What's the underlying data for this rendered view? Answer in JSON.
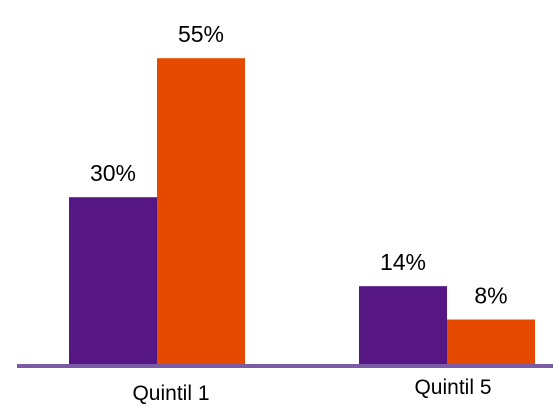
{
  "chart_data": {
    "type": "bar",
    "categories": [
      "Quintil 1",
      "Quintil 5"
    ],
    "series": [
      {
        "values": [
          30,
          14
        ],
        "labels": [
          "30%",
          "14%"
        ],
        "color": "#561784"
      },
      {
        "values": [
          55,
          8
        ],
        "labels": [
          "55%",
          "8%"
        ],
        "color": "#e64a00"
      }
    ],
    "axis_color": "#7b5aa6",
    "grid": false,
    "legend": "none",
    "ylim": [
      0,
      60
    ]
  }
}
